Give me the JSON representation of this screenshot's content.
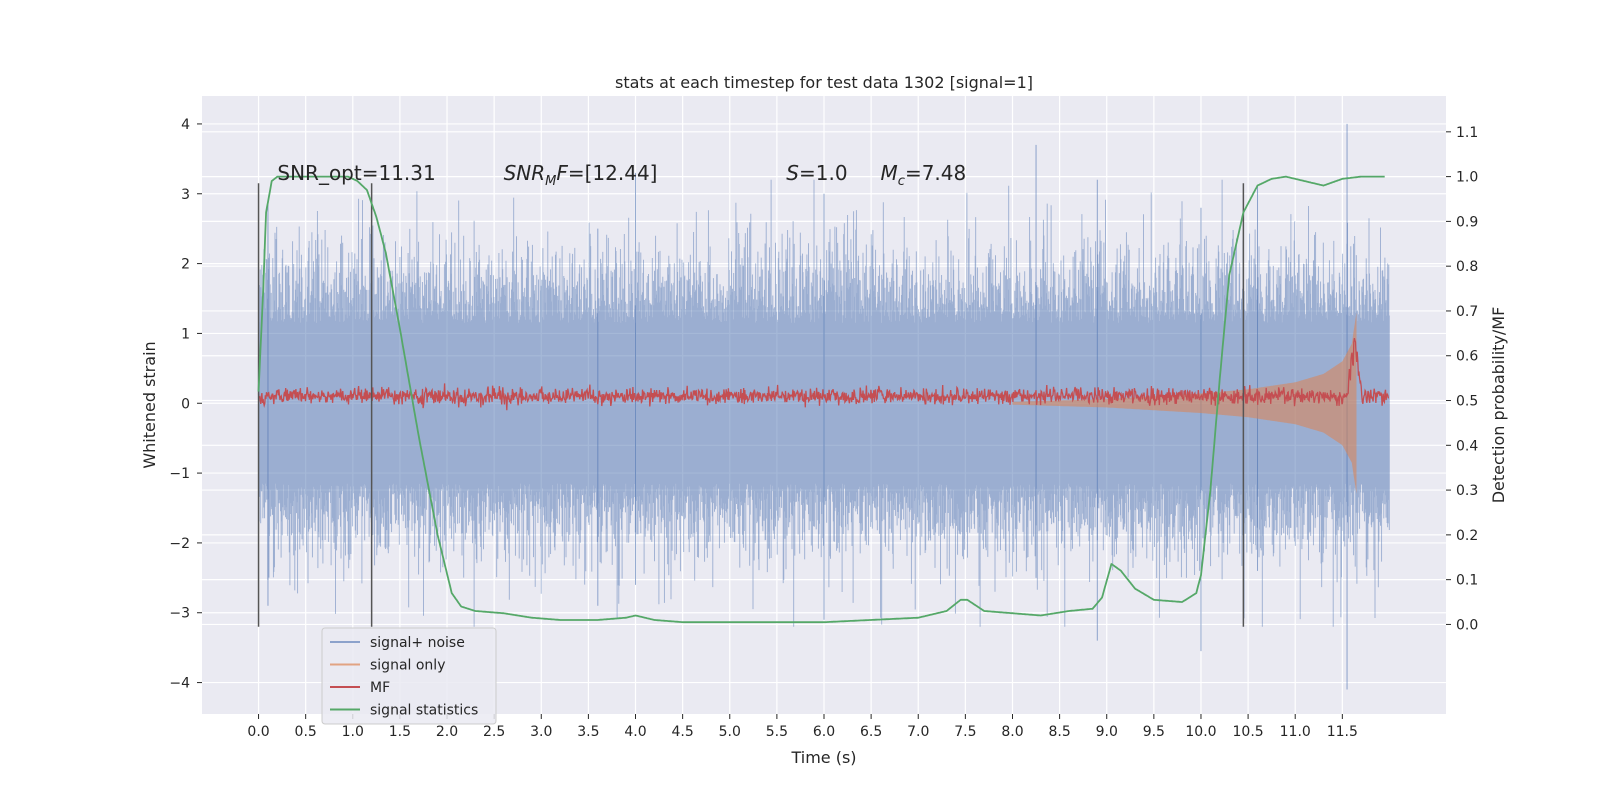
{
  "chart_data": {
    "type": "line",
    "title": "stats at each timestep for test data 1302 [signal=1]",
    "xlabel": "Time (s)",
    "ylabel": "Whitened strain",
    "ylabel_right": "Detection probability/MF",
    "xlim": [
      -0.6,
      12.6
    ],
    "ylim": [
      -4.45,
      4.4
    ],
    "ylim_right": [
      -0.2,
      1.18
    ],
    "xticks": [
      0.0,
      0.5,
      1.0,
      1.5,
      2.0,
      2.5,
      3.0,
      3.5,
      4.0,
      4.5,
      5.0,
      5.5,
      6.0,
      6.5,
      7.0,
      7.5,
      8.0,
      8.5,
      9.0,
      9.5,
      10.0,
      10.5,
      11.0,
      11.5
    ],
    "xtick_labels": [
      "0.0",
      "0.5",
      "1.0",
      "1.5",
      "2.0",
      "2.5",
      "3.0",
      "3.5",
      "4.0",
      "4.5",
      "5.0",
      "5.5",
      "6.0",
      "6.5",
      "7.0",
      "7.5",
      "8.0",
      "8.5",
      "9.0",
      "9.5",
      "10.0",
      "10.5",
      "11.0",
      "11.5"
    ],
    "yticks": [
      4,
      3,
      2,
      1,
      0,
      -1,
      -2,
      -3,
      -4
    ],
    "ytick_labels": [
      "4",
      "3",
      "2",
      "1",
      "0",
      "−1",
      "−2",
      "−3",
      "−4"
    ],
    "yticks_right": [
      1.1,
      1.0,
      0.9,
      0.8,
      0.7,
      0.6,
      0.5,
      0.4,
      0.3,
      0.2,
      0.1,
      0.0
    ],
    "ytick_labels_right": [
      "1.1",
      "1.0",
      "0.9",
      "0.8",
      "0.7",
      "0.6",
      "0.5",
      "0.4",
      "0.3",
      "0.2",
      "0.1",
      "0.0"
    ],
    "grid": true,
    "legend_position": "lower-left",
    "annotations": [
      {
        "x": 0.2,
        "y": 3.2,
        "text": "SNR_opt=11.31"
      },
      {
        "x": 2.6,
        "y": 3.2,
        "text": "SNR_MF=[12.44]"
      },
      {
        "x": 5.6,
        "y": 3.2,
        "text": "S=1.0"
      },
      {
        "x": 6.6,
        "y": 3.2,
        "text": "M_c=7.48"
      }
    ],
    "vertical_lines": [
      {
        "x": 0.0,
        "ymin": -3.2,
        "ymax": 3.15
      },
      {
        "x": 1.2,
        "ymin": -3.2,
        "ymax": 3.15
      },
      {
        "x": 10.45,
        "ymin": -3.2,
        "ymax": 3.15
      }
    ],
    "series": [
      {
        "name": "signal+ noise",
        "color": "#4c72b0",
        "style": "dense noise, approx. range -4.1 to 4.0",
        "x": [
          0.0,
          12.0
        ],
        "envelope_min": [
          -3.0,
          -3.0
        ],
        "envelope_max": [
          3.0,
          3.0
        ]
      },
      {
        "name": "signal only",
        "color": "#dd8452",
        "style": "chirp, amplitude grows toward merger",
        "x": [
          8.0,
          9.0,
          10.0,
          10.5,
          11.0,
          11.3,
          11.5,
          11.6,
          11.65
        ],
        "amplitude": [
          0.02,
          0.06,
          0.14,
          0.2,
          0.3,
          0.42,
          0.6,
          0.85,
          1.3
        ]
      },
      {
        "name": "MF",
        "color": "#c44e52",
        "axis": "right",
        "style": "noisy around baseline",
        "x": [
          0.0,
          12.0
        ],
        "baseline": [
          0.51,
          0.51
        ],
        "noise_amplitude": 0.018,
        "peak": {
          "x": 11.63,
          "value": 0.67
        }
      },
      {
        "name": "signal statistics",
        "color": "#55a868",
        "axis": "right",
        "x": [
          0.0,
          0.05,
          0.08,
          0.14,
          0.2,
          0.3,
          0.4,
          0.6,
          0.8,
          0.95,
          1.05,
          1.15,
          1.25,
          1.35,
          1.5,
          1.7,
          1.9,
          2.05,
          2.15,
          2.3,
          2.6,
          2.9,
          3.2,
          3.6,
          3.9,
          4.0,
          4.2,
          4.5,
          5.0,
          5.5,
          6.0,
          6.5,
          7.0,
          7.3,
          7.45,
          7.52,
          7.7,
          8.0,
          8.3,
          8.6,
          8.85,
          8.95,
          9.05,
          9.15,
          9.3,
          9.5,
          9.8,
          9.95,
          10.0,
          10.1,
          10.2,
          10.3,
          10.45,
          10.6,
          10.75,
          10.9,
          11.1,
          11.3,
          11.5,
          11.7,
          11.95
        ],
        "values": [
          0.52,
          0.75,
          0.92,
          0.99,
          1.0,
          1.0,
          1.0,
          1.0,
          1.0,
          1.0,
          0.99,
          0.97,
          0.91,
          0.83,
          0.66,
          0.42,
          0.2,
          0.07,
          0.04,
          0.03,
          0.025,
          0.015,
          0.01,
          0.01,
          0.015,
          0.02,
          0.01,
          0.005,
          0.005,
          0.005,
          0.005,
          0.01,
          0.015,
          0.03,
          0.055,
          0.055,
          0.03,
          0.025,
          0.02,
          0.03,
          0.035,
          0.06,
          0.135,
          0.12,
          0.08,
          0.055,
          0.05,
          0.07,
          0.11,
          0.3,
          0.55,
          0.78,
          0.92,
          0.98,
          0.995,
          1.0,
          0.99,
          0.98,
          0.995,
          1.0,
          1.0
        ]
      }
    ]
  }
}
